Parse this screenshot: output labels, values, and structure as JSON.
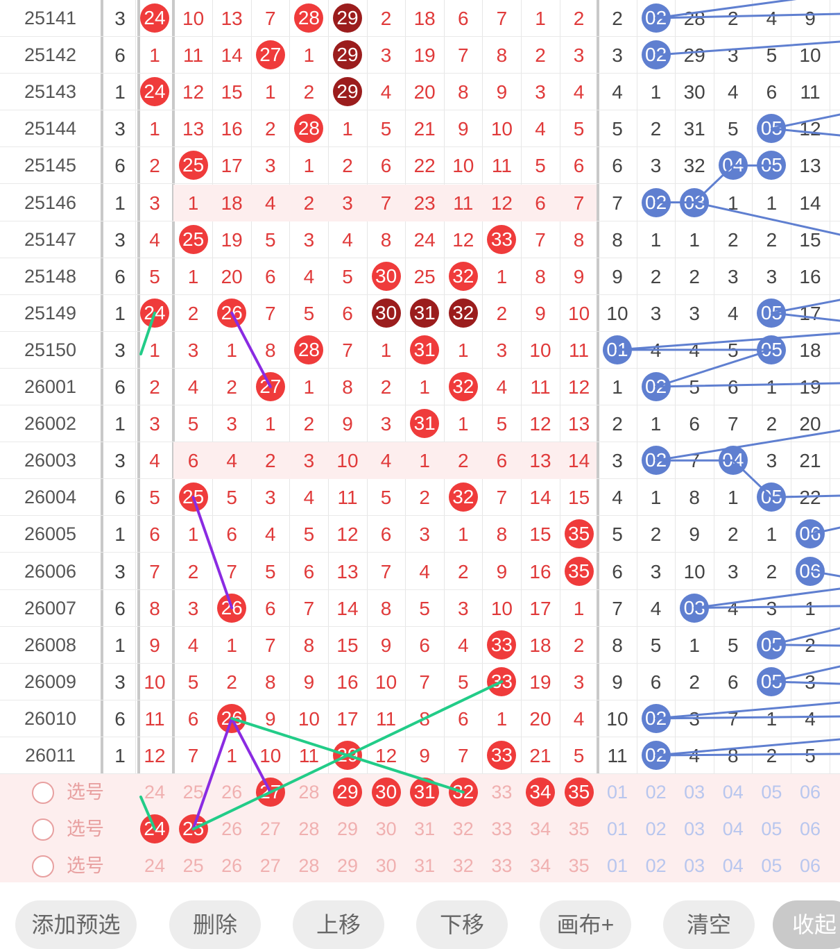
{
  "columns": {
    "red": [
      "24",
      "25",
      "26",
      "27",
      "28",
      "29",
      "30",
      "31",
      "32",
      "33",
      "34",
      "35"
    ],
    "blue": [
      "01",
      "02",
      "03",
      "04",
      "05",
      "06"
    ]
  },
  "rows": [
    {
      "period": "25141",
      "g": "3",
      "red": [
        "24",
        "10",
        "13",
        "7",
        "28",
        "29",
        "2",
        "18",
        "6",
        "7",
        "1",
        "2"
      ],
      "blue": [
        "2",
        "02",
        "28",
        "2",
        "4",
        "9"
      ],
      "balls": {
        "red": [
          0,
          4
        ],
        "dark": [
          5
        ],
        "blue": [
          1
        ]
      }
    },
    {
      "period": "25142",
      "g": "6",
      "red": [
        "1",
        "11",
        "14",
        "27",
        "1",
        "29",
        "3",
        "19",
        "7",
        "8",
        "2",
        "3"
      ],
      "blue": [
        "3",
        "02",
        "29",
        "3",
        "5",
        "10"
      ],
      "balls": {
        "red": [
          3
        ],
        "dark": [
          5
        ],
        "blue": [
          1
        ]
      }
    },
    {
      "period": "25143",
      "g": "1",
      "red": [
        "24",
        "12",
        "15",
        "1",
        "2",
        "29",
        "4",
        "20",
        "8",
        "9",
        "3",
        "4"
      ],
      "blue": [
        "4",
        "1",
        "30",
        "4",
        "6",
        "11"
      ],
      "balls": {
        "red": [
          0
        ],
        "dark": [
          5
        ],
        "blue": []
      }
    },
    {
      "period": "25144",
      "g": "3",
      "red": [
        "1",
        "13",
        "16",
        "2",
        "28",
        "1",
        "5",
        "21",
        "9",
        "10",
        "4",
        "5"
      ],
      "blue": [
        "5",
        "2",
        "31",
        "5",
        "05",
        "12"
      ],
      "balls": {
        "red": [
          4
        ],
        "dark": [],
        "blue": [
          4
        ]
      }
    },
    {
      "period": "25145",
      "g": "6",
      "red": [
        "2",
        "25",
        "17",
        "3",
        "1",
        "2",
        "6",
        "22",
        "10",
        "11",
        "5",
        "6"
      ],
      "blue": [
        "6",
        "3",
        "32",
        "04",
        "05",
        "13"
      ],
      "balls": {
        "red": [
          1
        ],
        "dark": [],
        "blue": [
          3,
          4
        ]
      }
    },
    {
      "period": "25146",
      "g": "1",
      "red": [
        "3",
        "1",
        "18",
        "4",
        "2",
        "3",
        "7",
        "23",
        "11",
        "12",
        "6",
        "7"
      ],
      "blue": [
        "7",
        "02",
        "03",
        "1",
        "1",
        "14"
      ],
      "balls": {
        "red": [],
        "dark": [],
        "blue": [
          1,
          2
        ]
      },
      "tint": true
    },
    {
      "period": "25147",
      "g": "3",
      "red": [
        "4",
        "25",
        "19",
        "5",
        "3",
        "4",
        "8",
        "24",
        "12",
        "33",
        "7",
        "8"
      ],
      "blue": [
        "8",
        "1",
        "1",
        "2",
        "2",
        "15"
      ],
      "balls": {
        "red": [
          1,
          9
        ],
        "dark": [],
        "blue": []
      }
    },
    {
      "period": "25148",
      "g": "6",
      "red": [
        "5",
        "1",
        "20",
        "6",
        "4",
        "5",
        "30",
        "25",
        "32",
        "1",
        "8",
        "9"
      ],
      "blue": [
        "9",
        "2",
        "2",
        "3",
        "3",
        "16"
      ],
      "balls": {
        "red": [
          6,
          8
        ],
        "dark": [],
        "blue": []
      }
    },
    {
      "period": "25149",
      "g": "1",
      "red": [
        "24",
        "2",
        "26",
        "7",
        "5",
        "6",
        "30",
        "31",
        "32",
        "2",
        "9",
        "10"
      ],
      "blue": [
        "10",
        "3",
        "3",
        "4",
        "05",
        "17"
      ],
      "balls": {
        "red": [
          0,
          2
        ],
        "dark": [
          6,
          7,
          8
        ],
        "blue": [
          4
        ]
      }
    },
    {
      "period": "25150",
      "g": "3",
      "red": [
        "1",
        "3",
        "1",
        "8",
        "28",
        "7",
        "1",
        "31",
        "1",
        "3",
        "10",
        "11"
      ],
      "blue": [
        "01",
        "4",
        "4",
        "5",
        "05",
        "18"
      ],
      "balls": {
        "red": [
          4,
          7
        ],
        "dark": [],
        "blue": [
          0,
          4
        ]
      }
    },
    {
      "period": "26001",
      "g": "6",
      "red": [
        "2",
        "4",
        "2",
        "27",
        "1",
        "8",
        "2",
        "1",
        "32",
        "4",
        "11",
        "12"
      ],
      "blue": [
        "1",
        "02",
        "5",
        "6",
        "1",
        "19"
      ],
      "balls": {
        "red": [
          3,
          8
        ],
        "dark": [],
        "blue": [
          1
        ]
      }
    },
    {
      "period": "26002",
      "g": "1",
      "red": [
        "3",
        "5",
        "3",
        "1",
        "2",
        "9",
        "3",
        "31",
        "1",
        "5",
        "12",
        "13"
      ],
      "blue": [
        "2",
        "1",
        "6",
        "7",
        "2",
        "20"
      ],
      "balls": {
        "red": [
          7
        ],
        "dark": [],
        "blue": []
      }
    },
    {
      "period": "26003",
      "g": "3",
      "red": [
        "4",
        "6",
        "4",
        "2",
        "3",
        "10",
        "4",
        "1",
        "2",
        "6",
        "13",
        "14"
      ],
      "blue": [
        "3",
        "02",
        "7",
        "04",
        "3",
        "21"
      ],
      "balls": {
        "red": [],
        "dark": [],
        "blue": [
          1,
          3
        ]
      },
      "tint": true
    },
    {
      "period": "26004",
      "g": "6",
      "red": [
        "5",
        "25",
        "5",
        "3",
        "4",
        "11",
        "5",
        "2",
        "32",
        "7",
        "14",
        "15"
      ],
      "blue": [
        "4",
        "1",
        "8",
        "1",
        "05",
        "22"
      ],
      "balls": {
        "red": [
          1,
          8
        ],
        "dark": [],
        "blue": [
          4
        ]
      }
    },
    {
      "period": "26005",
      "g": "1",
      "red": [
        "6",
        "1",
        "6",
        "4",
        "5",
        "12",
        "6",
        "3",
        "1",
        "8",
        "15",
        "35"
      ],
      "blue": [
        "5",
        "2",
        "9",
        "2",
        "1",
        "06"
      ],
      "balls": {
        "red": [
          11
        ],
        "dark": [],
        "blue": [
          5
        ]
      }
    },
    {
      "period": "26006",
      "g": "3",
      "red": [
        "7",
        "2",
        "7",
        "5",
        "6",
        "13",
        "7",
        "4",
        "2",
        "9",
        "16",
        "35"
      ],
      "blue": [
        "6",
        "3",
        "10",
        "3",
        "2",
        "06"
      ],
      "balls": {
        "red": [
          11
        ],
        "dark": [],
        "blue": [
          5
        ]
      }
    },
    {
      "period": "26007",
      "g": "6",
      "red": [
        "8",
        "3",
        "26",
        "6",
        "7",
        "14",
        "8",
        "5",
        "3",
        "10",
        "17",
        "1"
      ],
      "blue": [
        "7",
        "4",
        "03",
        "4",
        "3",
        "1"
      ],
      "balls": {
        "red": [
          2
        ],
        "dark": [],
        "blue": [
          2
        ]
      }
    },
    {
      "period": "26008",
      "g": "1",
      "red": [
        "9",
        "4",
        "1",
        "7",
        "8",
        "15",
        "9",
        "6",
        "4",
        "33",
        "18",
        "2"
      ],
      "blue": [
        "8",
        "5",
        "1",
        "5",
        "05",
        "2"
      ],
      "balls": {
        "red": [
          9
        ],
        "dark": [],
        "blue": [
          4
        ]
      }
    },
    {
      "period": "26009",
      "g": "3",
      "red": [
        "10",
        "5",
        "2",
        "8",
        "9",
        "16",
        "10",
        "7",
        "5",
        "33",
        "19",
        "3"
      ],
      "blue": [
        "9",
        "6",
        "2",
        "6",
        "05",
        "3"
      ],
      "balls": {
        "red": [
          9
        ],
        "dark": [],
        "blue": [
          4
        ]
      }
    },
    {
      "period": "26010",
      "g": "6",
      "red": [
        "11",
        "6",
        "26",
        "9",
        "10",
        "17",
        "11",
        "8",
        "6",
        "1",
        "20",
        "4"
      ],
      "blue": [
        "10",
        "02",
        "3",
        "7",
        "1",
        "4"
      ],
      "balls": {
        "red": [
          2
        ],
        "dark": [],
        "blue": [
          1
        ]
      }
    },
    {
      "period": "26011",
      "g": "1",
      "red": [
        "12",
        "7",
        "1",
        "10",
        "11",
        "29",
        "12",
        "9",
        "7",
        "33",
        "21",
        "5"
      ],
      "blue": [
        "11",
        "02",
        "4",
        "8",
        "2",
        "5"
      ],
      "balls": {
        "red": [
          5,
          9
        ],
        "dark": [],
        "blue": [
          1
        ]
      }
    }
  ],
  "selection_rows": [
    {
      "label": "选号",
      "red_selected": [
        3,
        5,
        6,
        7,
        8,
        10,
        11
      ],
      "dark_selected": []
    },
    {
      "label": "选号",
      "red_selected": [
        0,
        1
      ],
      "dark_selected": []
    },
    {
      "label": "选号",
      "red_selected": [],
      "dark_selected": []
    }
  ],
  "toolbar": {
    "add_preselect": "添加预选",
    "delete": "删除",
    "move_up": "上移",
    "move_down": "下移",
    "canvas": "画布+",
    "clear": "清空",
    "collapse": "收起"
  },
  "colors": {
    "red_ball": "#ef3b3b",
    "dark_ball": "#9b1d1d",
    "blue_ball": "#5f7fd0",
    "line_purple": "#8a2be2",
    "line_green": "#22cc88",
    "line_blue": "#5f7fd0"
  }
}
